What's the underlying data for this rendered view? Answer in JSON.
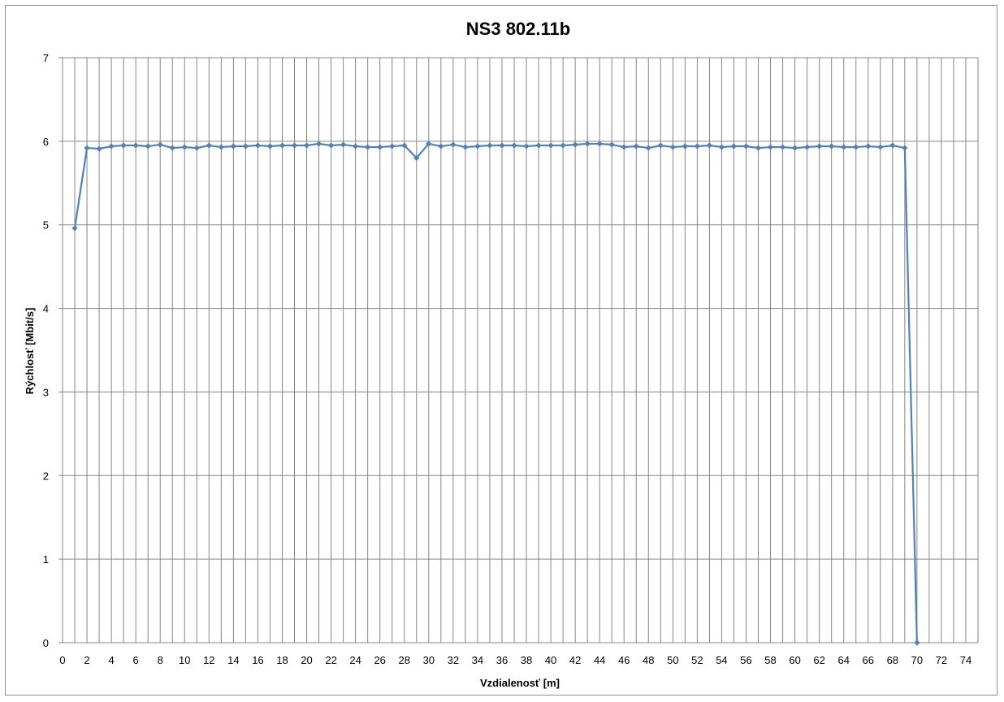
{
  "chart_data": {
    "type": "line",
    "title": "NS3 802.11b",
    "xlabel": "Vzdialenosť [m]",
    "ylabel": "Rýchlosť [Mbit/s]",
    "xlim": [
      0,
      75
    ],
    "ylim": [
      0,
      7
    ],
    "xticks": [
      "0",
      "2",
      "4",
      "6",
      "8",
      "10",
      "12",
      "14",
      "16",
      "18",
      "20",
      "22",
      "24",
      "26",
      "28",
      "30",
      "32",
      "34",
      "36",
      "38",
      "40",
      "42",
      "44",
      "46",
      "48",
      "50",
      "52",
      "54",
      "56",
      "58",
      "60",
      "62",
      "64",
      "66",
      "68",
      "70",
      "72",
      "74"
    ],
    "yticks": [
      "0",
      "1",
      "2",
      "3",
      "4",
      "5",
      "6",
      "7"
    ],
    "grid": true,
    "legend": "none",
    "colors": {
      "line": "#4f81bd",
      "grid": "#868686",
      "axis": "#868686"
    },
    "series": [
      {
        "x": [
          1,
          2,
          3,
          4,
          5,
          6,
          7,
          8,
          9,
          10,
          11,
          12,
          13,
          14,
          15,
          16,
          17,
          18,
          19,
          20,
          21,
          22,
          23,
          24,
          25,
          26,
          27,
          28,
          29,
          30,
          31,
          32,
          33,
          34,
          35,
          36,
          37,
          38,
          39,
          40,
          41,
          42,
          43,
          44,
          45,
          46,
          47,
          48,
          49,
          50,
          51,
          52,
          53,
          54,
          55,
          56,
          57,
          58,
          59,
          60,
          61,
          62,
          63,
          64,
          65,
          66,
          67,
          68,
          69,
          70
        ],
        "values": [
          4.96,
          5.92,
          5.91,
          5.94,
          5.95,
          5.95,
          5.94,
          5.96,
          5.92,
          5.93,
          5.92,
          5.95,
          5.93,
          5.94,
          5.94,
          5.95,
          5.94,
          5.95,
          5.95,
          5.95,
          5.97,
          5.95,
          5.96,
          5.94,
          5.93,
          5.93,
          5.94,
          5.95,
          5.8,
          5.97,
          5.94,
          5.96,
          5.93,
          5.94,
          5.95,
          5.95,
          5.95,
          5.94,
          5.95,
          5.95,
          5.95,
          5.96,
          5.97,
          5.97,
          5.96,
          5.93,
          5.94,
          5.92,
          5.95,
          5.93,
          5.94,
          5.94,
          5.95,
          5.93,
          5.94,
          5.94,
          5.92,
          5.93,
          5.93,
          5.92,
          5.93,
          5.94,
          5.94,
          5.93,
          5.93,
          5.94,
          5.93,
          5.95,
          5.92,
          0
        ]
      }
    ]
  }
}
